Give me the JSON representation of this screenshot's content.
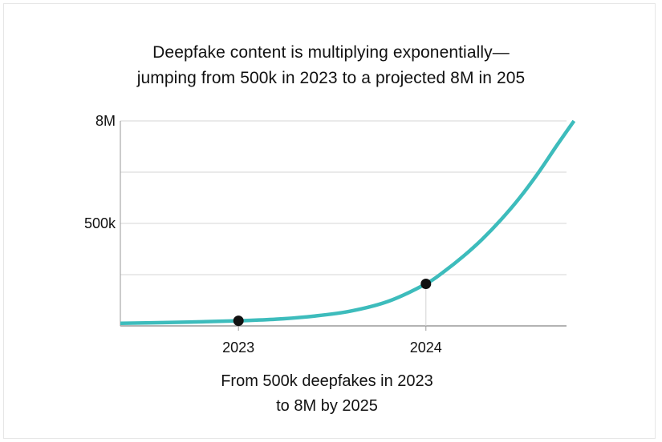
{
  "title": {
    "line1": "Deepfake content is multiplying exponentially—",
    "line2": "jumping from 500k in 2023 to a projected 8M in 205"
  },
  "caption": {
    "line1": "From 500k deepfakes in 2023",
    "line2": "to 8M by 2025"
  },
  "colors": {
    "curve": "#3dbcbc",
    "point": "#111111",
    "grid": "#d4d4d4",
    "axis": "#9a9a9a"
  },
  "chart_data": {
    "type": "line",
    "title": "Deepfake content is multiplying exponentially— jumping from 500k in 2023 to a projected 8M in 205",
    "xlabel": "",
    "ylabel": "",
    "x_ticks": [
      {
        "x": 2023,
        "label": "2023"
      },
      {
        "x": 2024,
        "label": "2024"
      }
    ],
    "y_ticks": [
      {
        "level": 2,
        "label": "500k"
      },
      {
        "level": 4,
        "label": "8M"
      }
    ],
    "xlim": [
      2022.37,
      2024.75
    ],
    "ylim": [
      0,
      4
    ],
    "grid": "horizontal",
    "series": [
      {
        "name": "Deepfakes",
        "x": [
          2022.37,
          2022.6,
          2022.8,
          2023.0,
          2023.2,
          2023.4,
          2023.6,
          2023.8,
          2024.0,
          2024.1,
          2024.2,
          2024.3,
          2024.4,
          2024.5,
          2024.6,
          2024.7,
          2024.79
        ],
        "y": [
          0.05,
          0.065,
          0.08,
          0.1,
          0.13,
          0.19,
          0.29,
          0.48,
          0.82,
          1.07,
          1.36,
          1.69,
          2.07,
          2.5,
          2.99,
          3.53,
          4.0
        ]
      }
    ],
    "points": [
      {
        "x": 2023,
        "y": 0.1,
        "label": "2023"
      },
      {
        "x": 2024,
        "y": 0.82,
        "label": "2024"
      }
    ]
  }
}
